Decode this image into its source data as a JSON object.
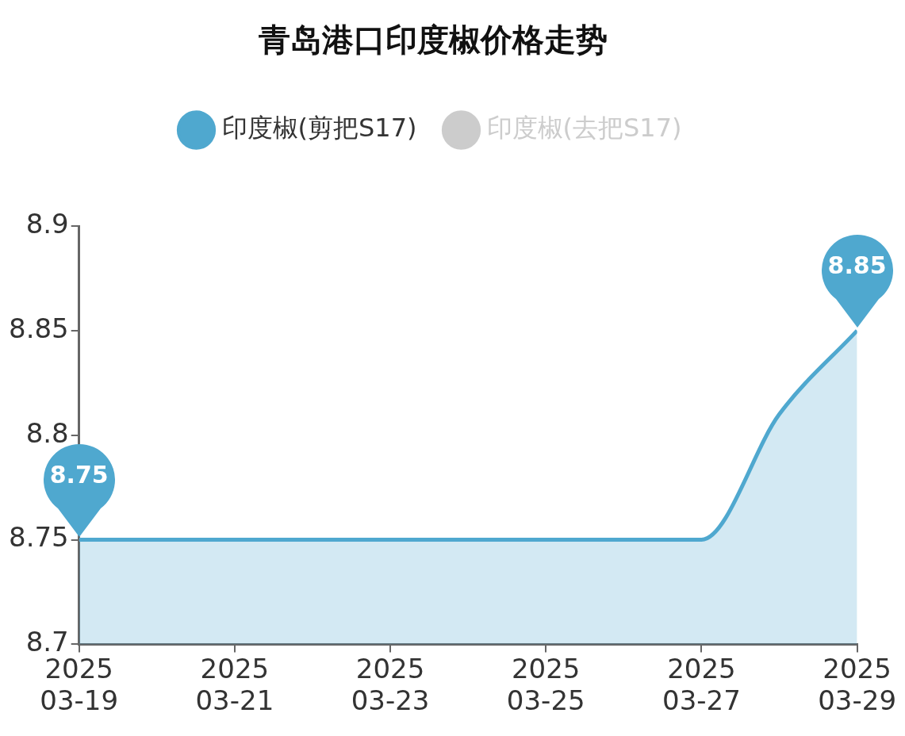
{
  "chart_data": {
    "type": "area",
    "title": "青岛港口印度椒价格走势",
    "x": [
      "2025-03-19",
      "2025-03-20",
      "2025-03-21",
      "2025-03-22",
      "2025-03-23",
      "2025-03-24",
      "2025-03-25",
      "2025-03-26",
      "2025-03-27",
      "2025-03-28",
      "2025-03-29"
    ],
    "series": [
      {
        "name": "印度椒(剪把S17)",
        "color": "#4fa8cf",
        "values": [
          8.75,
          8.75,
          8.75,
          8.75,
          8.75,
          8.75,
          8.75,
          8.75,
          8.75,
          8.81,
          8.85
        ],
        "value_labels": [
          "8.75",
          null,
          null,
          null,
          null,
          null,
          null,
          null,
          null,
          null,
          "8.85"
        ]
      },
      {
        "name": "印度椒(去把S17)",
        "color": "#cccccc",
        "values": [
          null,
          null,
          null,
          null,
          null,
          null,
          null,
          null,
          null,
          null,
          null
        ]
      }
    ],
    "xlim": [
      "2025-03-19",
      "2025-03-29"
    ],
    "xticks": [
      {
        "value": "2025-03-19",
        "label": "2025\n03-19"
      },
      {
        "value": "2025-03-21",
        "label": "2025\n03-21"
      },
      {
        "value": "2025-03-23",
        "label": "2025\n03-23"
      },
      {
        "value": "2025-03-25",
        "label": "2025\n03-25"
      },
      {
        "value": "2025-03-27",
        "label": "2025\n03-27"
      },
      {
        "value": "2025-03-29",
        "label": "2025\n03-29"
      }
    ],
    "ylim": [
      8.7,
      8.9
    ],
    "yticks": [
      8.7,
      8.75,
      8.8,
      8.85,
      8.9
    ],
    "grid": false,
    "legend": "top",
    "marker": "none",
    "line_style": "solid"
  }
}
